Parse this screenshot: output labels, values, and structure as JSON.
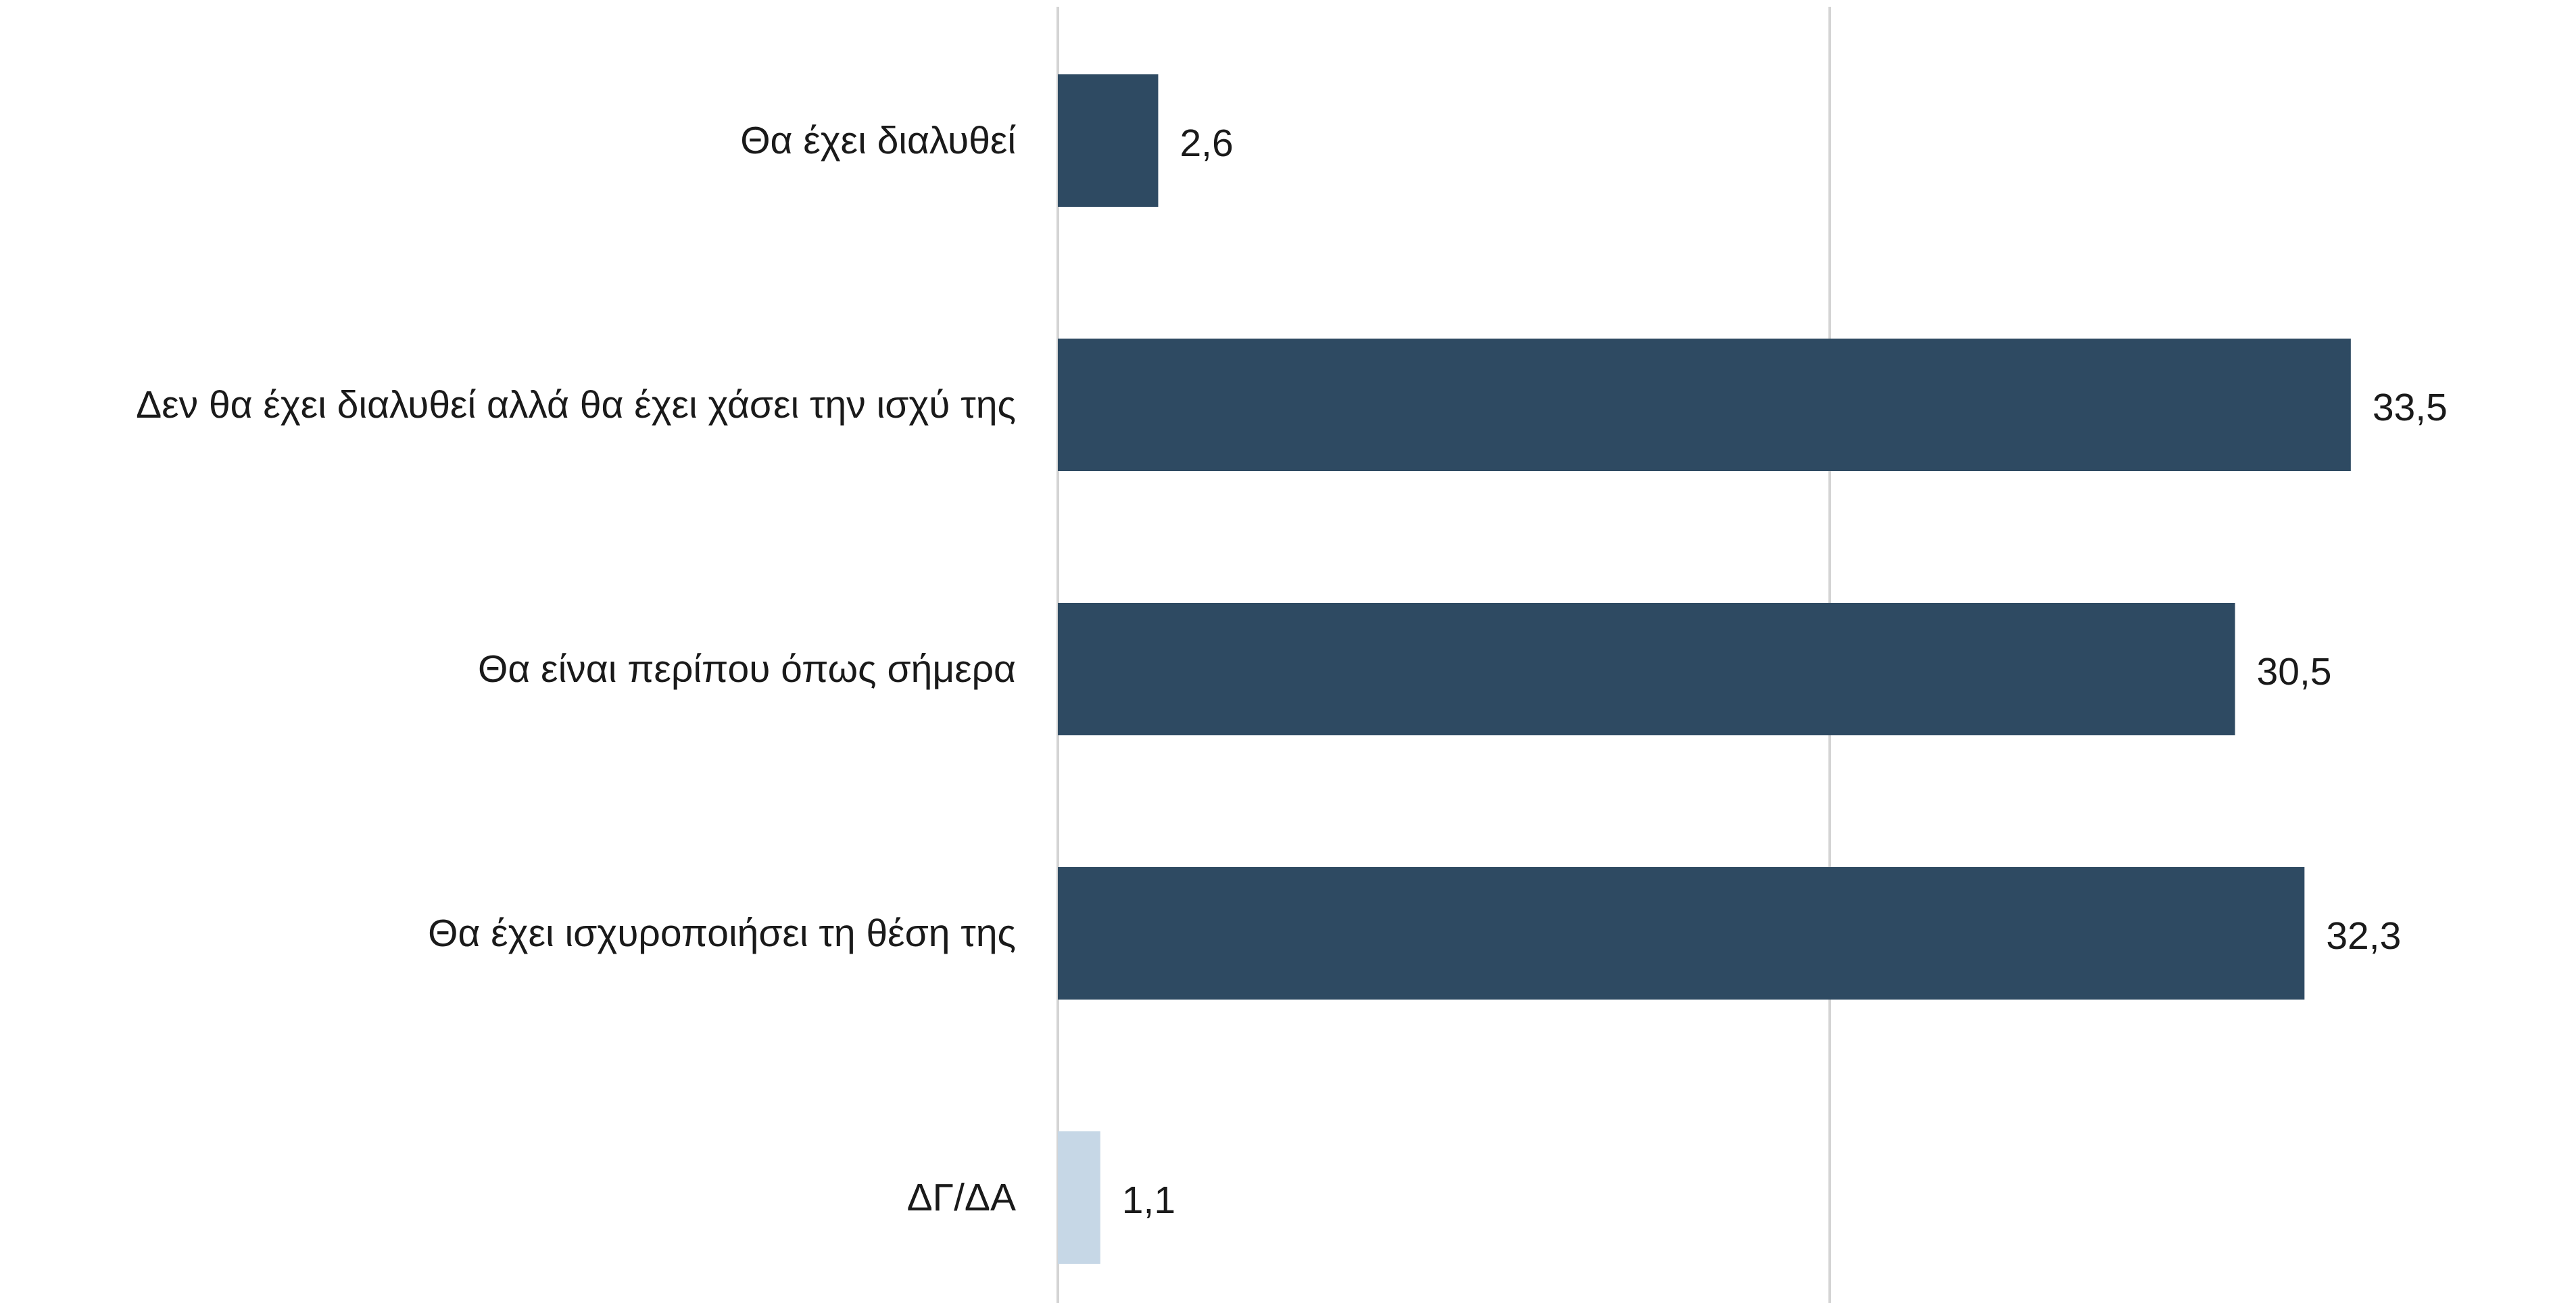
{
  "chart_data": {
    "type": "bar",
    "orientation": "horizontal",
    "categories": [
      "Θα έχει διαλυθεί",
      "Δεν θα έχει διαλυθεί αλλά θα έχει χάσει την ισχύ της",
      "Θα είναι περίπου όπως σήμερα",
      "Θα έχει ισχυροποιήσει τη θέση της",
      "ΔΓ/ΔΑ"
    ],
    "values": [
      2.6,
      33.5,
      30.5,
      32.3,
      1.1
    ],
    "value_labels": [
      "2,6",
      "33,5",
      "30,5",
      "32,3",
      "1,1"
    ],
    "bar_colors": [
      "#2e4a62",
      "#2e4a62",
      "#2e4a62",
      "#2e4a62",
      "#c6d7e6"
    ],
    "gridline_values": [
      0,
      20
    ],
    "gridline_color": "#d4d4d4",
    "xlim": [
      0,
      40
    ],
    "title": "",
    "xlabel": "",
    "ylabel": "",
    "legend": "none",
    "grid": true
  }
}
